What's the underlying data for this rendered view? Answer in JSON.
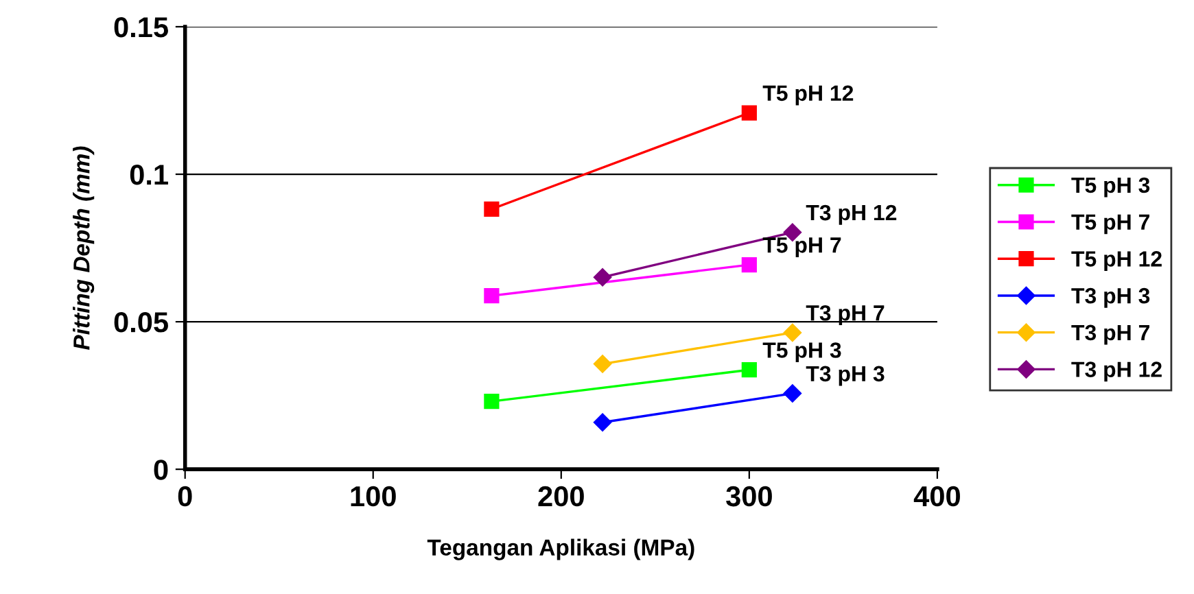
{
  "chart_data": {
    "type": "line",
    "xlabel": "Tegangan Aplikasi (MPa)",
    "ylabel": "Pitting Depth (mm)",
    "xlim": [
      0,
      400
    ],
    "xticks": [
      0,
      100,
      200,
      300,
      400
    ],
    "ylim": [
      0,
      0.15
    ],
    "yticks": [
      0,
      0.05,
      0.1,
      0.15
    ],
    "grid": "y",
    "legend": "right",
    "line_style": "solid",
    "series": [
      {
        "name": "T5 pH 3",
        "color": "#00ff00",
        "marker": "square",
        "x": [
          163,
          300
        ],
        "values": [
          0.023,
          0.0337
        ]
      },
      {
        "name": "T5 pH 7",
        "color": "#ff00ff",
        "marker": "square",
        "x": [
          163,
          300
        ],
        "values": [
          0.0588,
          0.0693
        ]
      },
      {
        "name": "T5 pH 12",
        "color": "#ff0000",
        "marker": "square",
        "x": [
          163,
          300
        ],
        "values": [
          0.0882,
          0.1208
        ]
      },
      {
        "name": "T3 pH 3",
        "color": "#0000ff",
        "marker": "diamond",
        "x": [
          222,
          323
        ],
        "values": [
          0.0159,
          0.0257
        ]
      },
      {
        "name": "T3 pH 7",
        "color": "#ffc000",
        "marker": "diamond",
        "x": [
          222,
          323
        ],
        "values": [
          0.0357,
          0.0463
        ]
      },
      {
        "name": "T3 pH 12",
        "color": "#800080",
        "marker": "diamond",
        "x": [
          222,
          323
        ],
        "values": [
          0.0651,
          0.0803
        ]
      }
    ]
  }
}
